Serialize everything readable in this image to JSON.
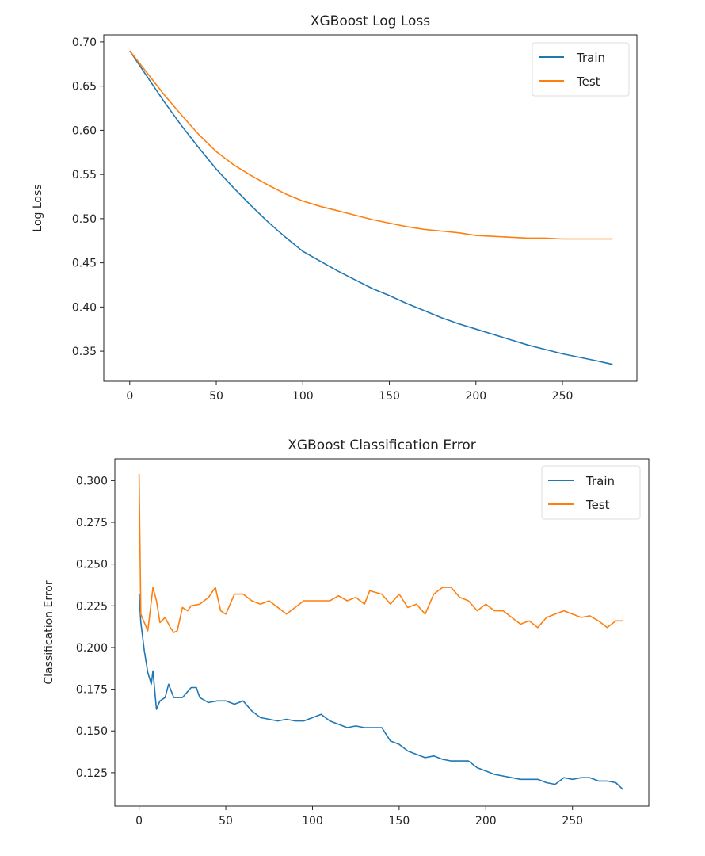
{
  "chart_data": [
    {
      "type": "line",
      "title": "XGBoost Log Loss",
      "xlabel": "",
      "ylabel": "Log Loss",
      "xlim": [
        -15,
        293
      ],
      "ylim": [
        0.316,
        0.708
      ],
      "xticks": [
        0,
        50,
        100,
        150,
        200,
        250
      ],
      "yticks": [
        0.35,
        0.4,
        0.45,
        0.5,
        0.55,
        0.6,
        0.65,
        0.7
      ],
      "ytick_decimals": 2,
      "legend": "top-right",
      "grid": false,
      "series": [
        {
          "name": "Train",
          "color": "#1f77b4",
          "x": [
            0,
            10,
            20,
            30,
            40,
            50,
            60,
            70,
            80,
            90,
            100,
            110,
            120,
            130,
            140,
            150,
            160,
            170,
            180,
            190,
            200,
            210,
            220,
            230,
            240,
            250,
            260,
            270,
            279
          ],
          "y": [
            0.69,
            0.661,
            0.632,
            0.605,
            0.58,
            0.556,
            0.535,
            0.515,
            0.496,
            0.479,
            0.463,
            0.452,
            0.441,
            0.431,
            0.421,
            0.413,
            0.404,
            0.396,
            0.388,
            0.381,
            0.375,
            0.369,
            0.363,
            0.357,
            0.352,
            0.347,
            0.343,
            0.339,
            0.335
          ]
        },
        {
          "name": "Test",
          "color": "#ff7f0e",
          "x": [
            0,
            10,
            20,
            30,
            40,
            50,
            60,
            70,
            80,
            90,
            100,
            110,
            120,
            130,
            140,
            150,
            160,
            170,
            180,
            190,
            200,
            210,
            220,
            230,
            240,
            250,
            260,
            270,
            279
          ],
          "y": [
            0.69,
            0.665,
            0.64,
            0.617,
            0.595,
            0.576,
            0.561,
            0.549,
            0.538,
            0.528,
            0.52,
            0.514,
            0.509,
            0.504,
            0.499,
            0.495,
            0.491,
            0.488,
            0.486,
            0.484,
            0.481,
            0.48,
            0.479,
            0.478,
            0.478,
            0.477,
            0.477,
            0.477,
            0.477
          ]
        }
      ]
    },
    {
      "type": "line",
      "title": "XGBoost Classification Error",
      "xlabel": "",
      "ylabel": "Classification Error",
      "xlim": [
        -14,
        294
      ],
      "ylim": [
        0.105,
        0.313
      ],
      "xticks": [
        0,
        50,
        100,
        150,
        200,
        250
      ],
      "yticks": [
        0.125,
        0.15,
        0.175,
        0.2,
        0.225,
        0.25,
        0.275,
        0.3
      ],
      "ytick_decimals": 3,
      "legend": "top-right",
      "grid": false,
      "series": [
        {
          "name": "Train",
          "color": "#1f77b4",
          "x": [
            0,
            1,
            3,
            5,
            7,
            8,
            10,
            12,
            15,
            17,
            20,
            25,
            30,
            33,
            35,
            40,
            45,
            50,
            55,
            60,
            65,
            70,
            75,
            80,
            85,
            90,
            95,
            100,
            105,
            110,
            115,
            120,
            125,
            130,
            140,
            145,
            150,
            155,
            160,
            165,
            170,
            175,
            180,
            190,
            195,
            200,
            205,
            210,
            215,
            220,
            230,
            235,
            240,
            245,
            250,
            255,
            260,
            265,
            270,
            275,
            279
          ],
          "y": [
            0.232,
            0.215,
            0.198,
            0.185,
            0.178,
            0.186,
            0.163,
            0.168,
            0.17,
            0.178,
            0.17,
            0.17,
            0.176,
            0.176,
            0.17,
            0.167,
            0.168,
            0.168,
            0.166,
            0.168,
            0.162,
            0.158,
            0.157,
            0.156,
            0.157,
            0.156,
            0.156,
            0.158,
            0.16,
            0.156,
            0.154,
            0.152,
            0.153,
            0.152,
            0.152,
            0.144,
            0.142,
            0.138,
            0.136,
            0.134,
            0.135,
            0.133,
            0.132,
            0.132,
            0.128,
            0.126,
            0.124,
            0.123,
            0.122,
            0.121,
            0.121,
            0.119,
            0.118,
            0.122,
            0.121,
            0.122,
            0.122,
            0.12,
            0.12,
            0.119,
            0.115
          ]
        },
        {
          "name": "Test",
          "color": "#ff7f0e",
          "x": [
            0,
            1,
            3,
            5,
            8,
            10,
            12,
            15,
            18,
            20,
            22,
            25,
            28,
            30,
            35,
            40,
            44,
            47,
            50,
            55,
            60,
            65,
            70,
            75,
            80,
            85,
            90,
            95,
            100,
            110,
            115,
            120,
            125,
            130,
            133,
            140,
            145,
            150,
            155,
            160,
            165,
            170,
            175,
            180,
            185,
            190,
            195,
            200,
            205,
            210,
            215,
            220,
            225,
            230,
            235,
            240,
            245,
            250,
            255,
            260,
            265,
            270,
            275,
            279
          ],
          "y": [
            0.304,
            0.22,
            0.215,
            0.21,
            0.236,
            0.228,
            0.215,
            0.218,
            0.212,
            0.209,
            0.21,
            0.224,
            0.222,
            0.225,
            0.226,
            0.23,
            0.236,
            0.222,
            0.22,
            0.232,
            0.232,
            0.228,
            0.226,
            0.228,
            0.224,
            0.22,
            0.224,
            0.228,
            0.228,
            0.228,
            0.231,
            0.228,
            0.23,
            0.226,
            0.234,
            0.232,
            0.226,
            0.232,
            0.224,
            0.226,
            0.22,
            0.232,
            0.236,
            0.236,
            0.23,
            0.228,
            0.222,
            0.226,
            0.222,
            0.222,
            0.218,
            0.214,
            0.216,
            0.212,
            0.218,
            0.22,
            0.222,
            0.22,
            0.218,
            0.219,
            0.216,
            0.212,
            0.216,
            0.216
          ]
        }
      ]
    }
  ]
}
